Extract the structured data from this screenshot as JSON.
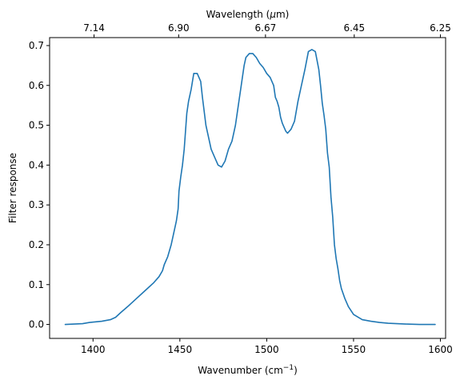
{
  "chart_data": {
    "type": "line",
    "xlabel": "Wavenumber (cm",
    "xlabel_sup": "−1",
    "xlabel_end": ")",
    "ylabel": "Filter response",
    "top_xlabel": "Wavelength (",
    "top_xlabel_mu": "μ",
    "top_xlabel_end": "m)",
    "xlim": [
      1375,
      1603
    ],
    "ylim": [
      -0.035,
      0.72
    ],
    "x_ticks": [
      1400,
      1450,
      1500,
      1550,
      1600
    ],
    "y_ticks": [
      0.0,
      0.1,
      0.2,
      0.3,
      0.4,
      0.5,
      0.6,
      0.7
    ],
    "x_tick_labels": [
      "1400",
      "1450",
      "1500",
      "1550",
      "1600"
    ],
    "y_tick_labels": [
      "0.0",
      "0.1",
      "0.2",
      "0.3",
      "0.4",
      "0.5",
      "0.6",
      "0.7"
    ],
    "top_ticks": [
      {
        "wavenumber": 1400.6,
        "label": "7.14"
      },
      {
        "wavenumber": 1449.3,
        "label": "6.90"
      },
      {
        "wavenumber": 1499.3,
        "label": "6.67"
      },
      {
        "wavenumber": 1550.4,
        "label": "6.45"
      },
      {
        "wavenumber": 1600.0,
        "label": "6.25"
      }
    ],
    "grid": false,
    "legend": "none",
    "series": [
      {
        "color": "#1f77b4",
        "x": [
          1384,
          1394,
          1398,
          1405,
          1410,
          1413,
          1416,
          1420,
          1425,
          1430,
          1435,
          1438,
          1440,
          1441,
          1443,
          1445,
          1447,
          1448,
          1449,
          1449.5,
          1450.5,
          1451.5,
          1452.5,
          1453,
          1454,
          1455,
          1455.5,
          1456.5,
          1458,
          1460,
          1462,
          1463,
          1465,
          1467,
          1468,
          1470,
          1472,
          1474,
          1476,
          1478,
          1480,
          1481,
          1482,
          1483,
          1484,
          1485,
          1486,
          1487,
          1488,
          1490,
          1492,
          1494,
          1496,
          1498,
          1500,
          1502,
          1504,
          1505,
          1506,
          1507,
          1508,
          1509,
          1510,
          1511,
          1512,
          1514,
          1516,
          1518,
          1519,
          1520,
          1521,
          1522,
          1524,
          1526,
          1528,
          1530,
          1531,
          1532,
          1533,
          1534,
          1535,
          1536,
          1537,
          1538,
          1539,
          1540,
          1541,
          1542,
          1543,
          1545,
          1547,
          1550,
          1555,
          1560,
          1565,
          1570,
          1575,
          1580,
          1588,
          1597
        ],
        "y": [
          0.0,
          0.002,
          0.005,
          0.008,
          0.012,
          0.018,
          0.03,
          0.045,
          0.065,
          0.085,
          0.105,
          0.12,
          0.135,
          0.15,
          0.17,
          0.2,
          0.24,
          0.26,
          0.29,
          0.335,
          0.37,
          0.4,
          0.44,
          0.47,
          0.53,
          0.56,
          0.57,
          0.59,
          0.63,
          0.63,
          0.61,
          0.57,
          0.5,
          0.46,
          0.44,
          0.42,
          0.4,
          0.395,
          0.41,
          0.44,
          0.46,
          0.48,
          0.5,
          0.53,
          0.56,
          0.59,
          0.62,
          0.65,
          0.67,
          0.68,
          0.68,
          0.67,
          0.655,
          0.645,
          0.63,
          0.62,
          0.6,
          0.57,
          0.56,
          0.545,
          0.52,
          0.505,
          0.495,
          0.485,
          0.48,
          0.49,
          0.51,
          0.56,
          0.58,
          0.6,
          0.62,
          0.64,
          0.685,
          0.69,
          0.685,
          0.64,
          0.6,
          0.555,
          0.525,
          0.49,
          0.43,
          0.395,
          0.32,
          0.27,
          0.2,
          0.165,
          0.14,
          0.11,
          0.09,
          0.065,
          0.045,
          0.025,
          0.012,
          0.008,
          0.005,
          0.003,
          0.002,
          0.001,
          0.0,
          0.0
        ]
      }
    ]
  }
}
